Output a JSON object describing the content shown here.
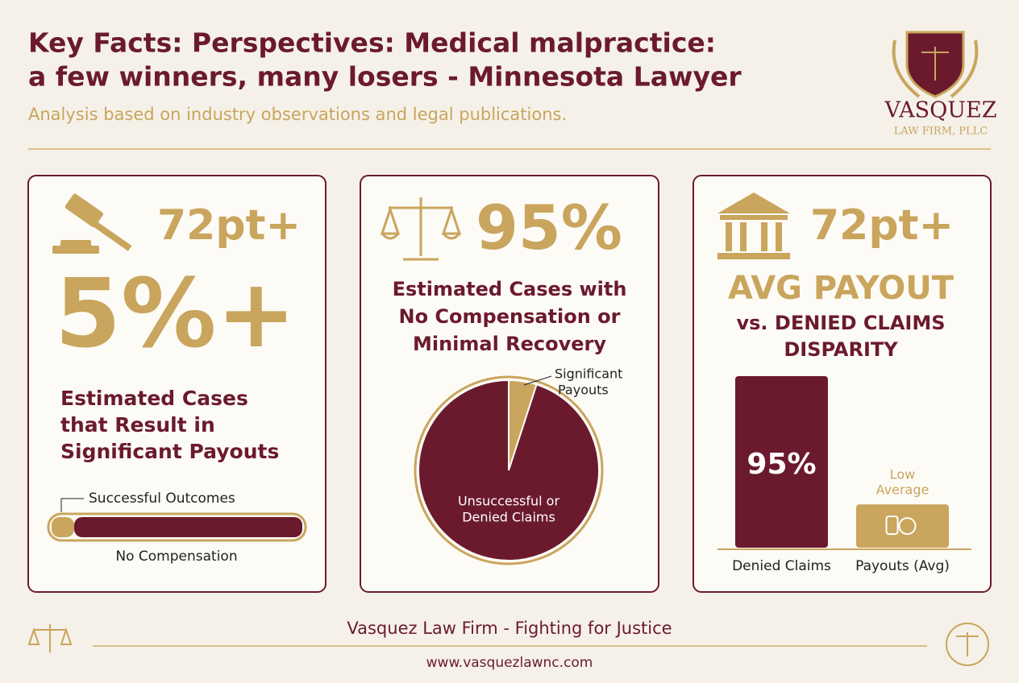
{
  "header": {
    "title_lines": [
      "Key Facts: Perspectives: Medical malpractice:",
      "a few winners, many losers - Minnesota Lawyer"
    ],
    "subtitle": "Analysis based on industry observations and legal publications."
  },
  "logo": {
    "name": "VASQUEZ",
    "sub": "LAW FIRM, PLLC"
  },
  "cards": [
    {
      "badge": "72pt+",
      "big": "5%+",
      "caption": [
        "Estimated Cases",
        "that Result in",
        "Significant Payouts"
      ],
      "bar": {
        "segments": [
          {
            "name": "Successful Outcomes",
            "value": 9
          },
          {
            "name": "No Compensation",
            "value": 91
          }
        ]
      }
    },
    {
      "big": "95%",
      "caption": [
        "Estimated Cases with",
        "No Compensation or",
        "Minimal Recovery"
      ],
      "pie": {
        "slices": [
          {
            "name_lines": [
              "Significant",
              "Payouts"
            ],
            "value": 5
          },
          {
            "name_lines": [
              "Unsuccessful or",
              "Denied Claims"
            ],
            "value": 95
          }
        ]
      }
    },
    {
      "badge": "72pt+",
      "big": "AVG PAYOUT",
      "caption": [
        "vs. DENIED CLAIMS",
        "DISPARITY"
      ],
      "bars": [
        {
          "name": "Denied Claims",
          "value": 95,
          "value_label": "95%"
        },
        {
          "name": "Payouts (Avg)",
          "value": 24,
          "note": [
            "Low",
            "Average"
          ]
        }
      ]
    }
  ],
  "footer": {
    "tagline": "Vasquez Law Firm - Fighting for Justice",
    "url": "www.vasquezlawnc.com"
  }
}
